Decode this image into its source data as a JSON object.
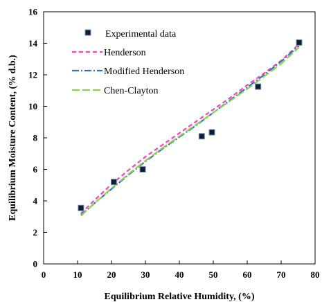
{
  "chart_data": {
    "type": "scatter",
    "xlabel": "Equilibrium Relative Humidity, (%)",
    "ylabel": "Equilibrium Moisture Content, (% d.b.)",
    "xlim": [
      0,
      80
    ],
    "ylim": [
      0,
      16
    ],
    "xticks": [
      "0",
      "10",
      "20",
      "30",
      "40",
      "50",
      "60",
      "70",
      "80"
    ],
    "yticks": [
      "0",
      "2",
      "4",
      "6",
      "8",
      "10",
      "12",
      "14",
      "16"
    ],
    "grid": false,
    "legend_position": "top-left",
    "series": [
      {
        "name": "Experimental data",
        "kind": "markers",
        "color": "#0b1f3a",
        "x": [
          11.0,
          20.7,
          29.2,
          46.6,
          49.6,
          63.2,
          75.3
        ],
        "y": [
          3.55,
          5.2,
          6.0,
          8.1,
          8.35,
          11.25,
          14.05
        ]
      },
      {
        "name": "Henderson",
        "kind": "line",
        "dash": "dashed",
        "color": "#ff3fbf",
        "x": [
          11.0,
          15,
          20,
          25,
          30,
          35,
          40,
          45,
          50,
          55,
          60,
          65,
          70,
          75.3
        ],
        "y": [
          3.2,
          4.05,
          5.05,
          5.95,
          6.8,
          7.55,
          8.3,
          9.05,
          9.8,
          10.55,
          11.35,
          12.1,
          12.9,
          13.95
        ]
      },
      {
        "name": "Modified Henderson",
        "kind": "line",
        "dash": "dash-dot",
        "color": "#2e75b6",
        "x": [
          11.0,
          15,
          20,
          25,
          30,
          35,
          40,
          45,
          50,
          55,
          60,
          65,
          70,
          75.3
        ],
        "y": [
          3.1,
          3.85,
          4.75,
          5.65,
          6.5,
          7.3,
          8.05,
          8.8,
          9.6,
          10.4,
          11.2,
          12.0,
          12.85,
          13.85
        ]
      },
      {
        "name": "Chen-Clayton",
        "kind": "line",
        "dash": "long-dash",
        "color": "#92d050",
        "x": [
          11.0,
          15,
          20,
          25,
          30,
          35,
          40,
          45,
          50,
          55,
          60,
          65,
          70,
          75.3
        ],
        "y": [
          3.05,
          3.85,
          4.8,
          5.7,
          6.55,
          7.35,
          8.1,
          8.85,
          9.6,
          10.35,
          11.1,
          11.9,
          12.7,
          13.75
        ]
      }
    ]
  }
}
